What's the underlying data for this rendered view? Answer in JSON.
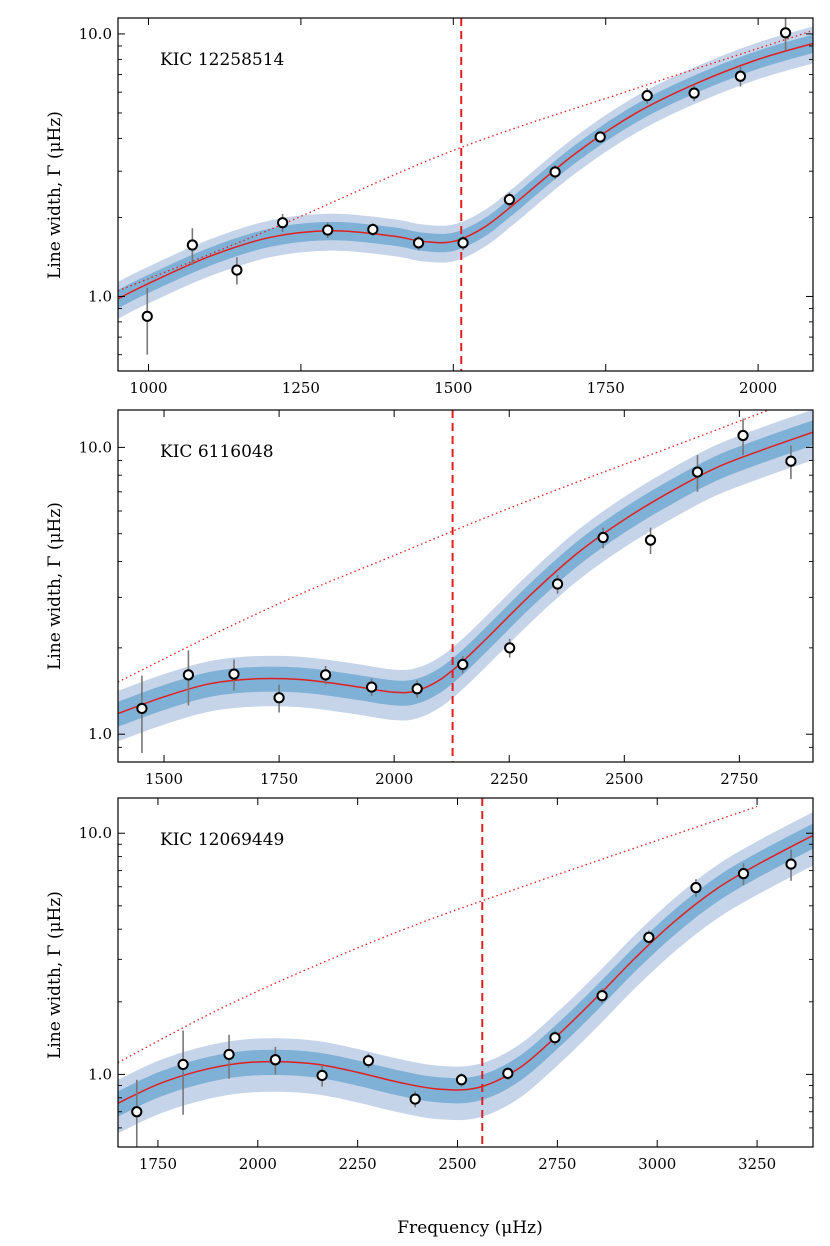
{
  "figure": {
    "xlabel": "Frequency (μHz)",
    "ylabel": "Line width, Γ (μHz)"
  },
  "colors": {
    "outer_band": "#c6d4ea",
    "inner_band": "#7fb0d5",
    "fit_line": "#e02020",
    "numax_line": "#e02020",
    "scaling_line": "#e02020",
    "error_bar": "#777777",
    "marker_edge": "#000000",
    "marker_fill": "#ffffff"
  },
  "chart_data": [
    {
      "type": "scatter",
      "title": "KIC 12258514",
      "xlim": [
        950,
        2090
      ],
      "ylim": [
        0.52,
        11.5
      ],
      "yscale": "log",
      "xticks": [
        1000,
        1250,
        1500,
        1750,
        2000
      ],
      "xtick_labels": [
        "1000",
        "1250",
        "1500",
        "1750",
        "2000"
      ],
      "yticks": [
        1.0,
        10.0
      ],
      "ytick_labels": [
        "1.0",
        "10.0"
      ],
      "numax": 1513,
      "points": {
        "x": [
          998,
          1072,
          1145,
          1220,
          1294,
          1368,
          1443,
          1516,
          1592,
          1667,
          1741,
          1818,
          1895,
          1971,
          2045
        ],
        "y": [
          0.84,
          1.57,
          1.26,
          1.91,
          1.79,
          1.8,
          1.6,
          1.6,
          2.34,
          2.98,
          4.05,
          5.82,
          5.95,
          6.9,
          10.1
        ],
        "err": [
          0.24,
          0.25,
          0.15,
          0.15,
          0.12,
          0.1,
          0.1,
          0.1,
          0.15,
          0.18,
          0.2,
          0.4,
          0.4,
          0.6,
          1.4
        ]
      },
      "fit": {
        "x": [
          950,
          1000,
          1100,
          1200,
          1300,
          1400,
          1450,
          1500,
          1550,
          1600,
          1700,
          1800,
          1900,
          2000,
          2090
        ],
        "y": [
          0.98,
          1.12,
          1.42,
          1.68,
          1.78,
          1.7,
          1.62,
          1.62,
          1.83,
          2.25,
          3.5,
          5.0,
          6.5,
          8.0,
          9.2
        ],
        "inner_frac": 0.08,
        "outer_frac": 0.16
      },
      "scaling": {
        "x": [
          950,
          1200,
          1500,
          1800,
          2090
        ],
        "y": [
          1.05,
          1.8,
          3.6,
          6.2,
          10.3
        ]
      }
    },
    {
      "type": "scatter",
      "title": "KIC 6116048",
      "xlim": [
        1400,
        2910
      ],
      "ylim": [
        0.8,
        13.5
      ],
      "yscale": "log",
      "xticks": [
        1500,
        1750,
        2000,
        2250,
        2500,
        2750
      ],
      "xtick_labels": [
        "1500",
        "1750",
        "2000",
        "2250",
        "2500",
        "2750"
      ],
      "yticks": [
        1.0,
        10.0
      ],
      "ytick_labels": [
        "1.0",
        "10.0"
      ],
      "numax": 2127,
      "points": {
        "x": [
          1452,
          1553,
          1652,
          1750,
          1851,
          1951,
          2050,
          2149,
          2251,
          2355,
          2454,
          2557,
          2659,
          2758,
          2862
        ],
        "y": [
          1.23,
          1.61,
          1.62,
          1.34,
          1.61,
          1.46,
          1.44,
          1.75,
          2.0,
          3.34,
          4.85,
          4.75,
          8.2,
          11.0,
          8.95
        ],
        "err": [
          0.37,
          0.35,
          0.2,
          0.15,
          0.12,
          0.1,
          0.1,
          0.12,
          0.15,
          0.25,
          0.4,
          0.5,
          1.2,
          1.6,
          1.2
        ]
      },
      "fit": {
        "x": [
          1400,
          1500,
          1600,
          1700,
          1800,
          1900,
          2000,
          2050,
          2100,
          2150,
          2200,
          2300,
          2400,
          2500,
          2600,
          2700,
          2800,
          2910
        ],
        "y": [
          1.18,
          1.35,
          1.5,
          1.56,
          1.55,
          1.48,
          1.4,
          1.42,
          1.55,
          1.8,
          2.15,
          3.1,
          4.3,
          5.6,
          7.0,
          8.5,
          9.8,
          11.3
        ],
        "inner_frac": 0.1,
        "outer_frac": 0.2
      },
      "scaling": {
        "x": [
          1400,
          1600,
          1800,
          2000,
          2200,
          2400,
          2600,
          2850
        ],
        "y": [
          1.52,
          2.2,
          3.1,
          4.2,
          5.7,
          7.6,
          10.0,
          14.2
        ]
      }
    },
    {
      "type": "scatter",
      "title": "KIC 12069449",
      "xlim": [
        1650,
        3390
      ],
      "ylim": [
        0.5,
        14.0
      ],
      "yscale": "log",
      "xticks": [
        1750,
        2000,
        2250,
        2500,
        2750,
        3000,
        3250
      ],
      "xtick_labels": [
        "1750",
        "2000",
        "2250",
        "2500",
        "2750",
        "3000",
        "3250"
      ],
      "yticks": [
        1.0,
        10.0
      ],
      "ytick_labels": [
        "1.0",
        "10.0"
      ],
      "numax": 2562,
      "points": {
        "x": [
          1697,
          1813,
          1928,
          2044,
          2161,
          2277,
          2394,
          2510,
          2626,
          2744,
          2862,
          2979,
          3097,
          3216,
          3335
        ],
        "y": [
          0.7,
          1.1,
          1.21,
          1.15,
          0.99,
          1.14,
          0.79,
          0.95,
          1.01,
          1.42,
          2.12,
          3.7,
          5.95,
          6.8,
          7.45
        ],
        "err": [
          0.25,
          0.42,
          0.25,
          0.15,
          0.1,
          0.08,
          0.06,
          0.06,
          0.06,
          0.1,
          0.15,
          0.25,
          0.5,
          0.7,
          1.1
        ]
      },
      "fit": {
        "x": [
          1650,
          1750,
          1850,
          1950,
          2050,
          2150,
          2250,
          2350,
          2450,
          2550,
          2650,
          2750,
          2850,
          2950,
          3050,
          3150,
          3250,
          3390
        ],
        "y": [
          0.76,
          0.91,
          1.03,
          1.11,
          1.13,
          1.1,
          1.02,
          0.93,
          0.87,
          0.88,
          1.05,
          1.45,
          2.1,
          3.1,
          4.4,
          5.9,
          7.4,
          9.8
        ],
        "inner_frac": 0.12,
        "outer_frac": 0.25
      },
      "scaling": {
        "x": [
          1650,
          1900,
          2150,
          2400,
          2650,
          2900,
          3250
        ],
        "y": [
          1.12,
          1.85,
          2.85,
          4.2,
          5.9,
          8.2,
          12.9
        ]
      }
    }
  ]
}
